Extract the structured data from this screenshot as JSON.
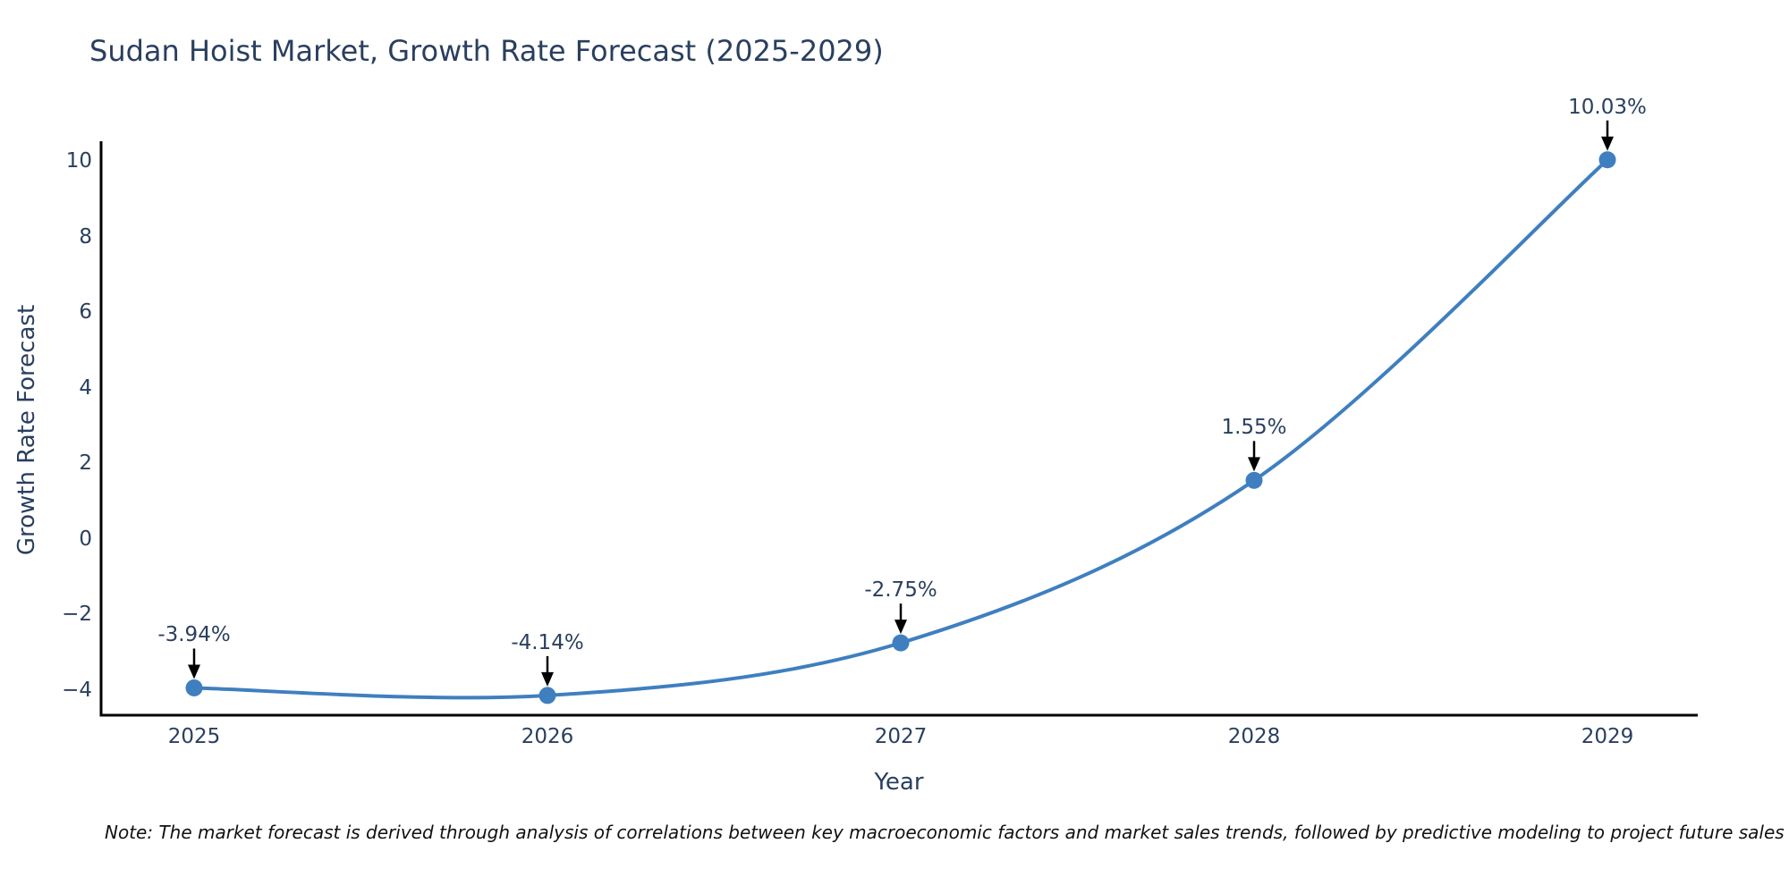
{
  "title": "Sudan Hoist Market, Growth Rate Forecast (2025-2029)",
  "note": "Note: The market forecast is derived through analysis of correlations between key macroeconomic factors and market sales trends, followed by predictive modeling to project future sales",
  "chart_data": {
    "type": "line",
    "title": "Sudan Hoist Market, Growth Rate Forecast (2025-2029)",
    "xlabel": "Year",
    "ylabel": "Growth Rate Forecast",
    "x": [
      2025,
      2026,
      2027,
      2028,
      2029
    ],
    "series": [
      {
        "name": "Growth Rate Forecast",
        "values": [
          -3.94,
          -4.14,
          -2.75,
          1.55,
          10.03
        ]
      }
    ],
    "point_labels": [
      "-3.94%",
      "-4.14%",
      "-2.75%",
      "1.55%",
      "10.03%"
    ],
    "xtick_labels": [
      "2025",
      "2026",
      "2027",
      "2028",
      "2029"
    ],
    "ytick_values": [
      10,
      8,
      6,
      4,
      2,
      0,
      -2,
      -4
    ],
    "ytick_labels": [
      "10",
      "8",
      "6",
      "4",
      "2",
      "0",
      "−2",
      "−4"
    ],
    "ylim": [
      -4.66,
      10.52
    ],
    "line_shape": "spline",
    "grid": false,
    "legend": "none",
    "colors": {
      "line": "#3f7fbf",
      "marker": "#3f7fbf",
      "axis": "#000000",
      "text": "#2a3f5f",
      "arrow": "#000000",
      "note_text": "#111111",
      "background": "#ffffff"
    }
  }
}
